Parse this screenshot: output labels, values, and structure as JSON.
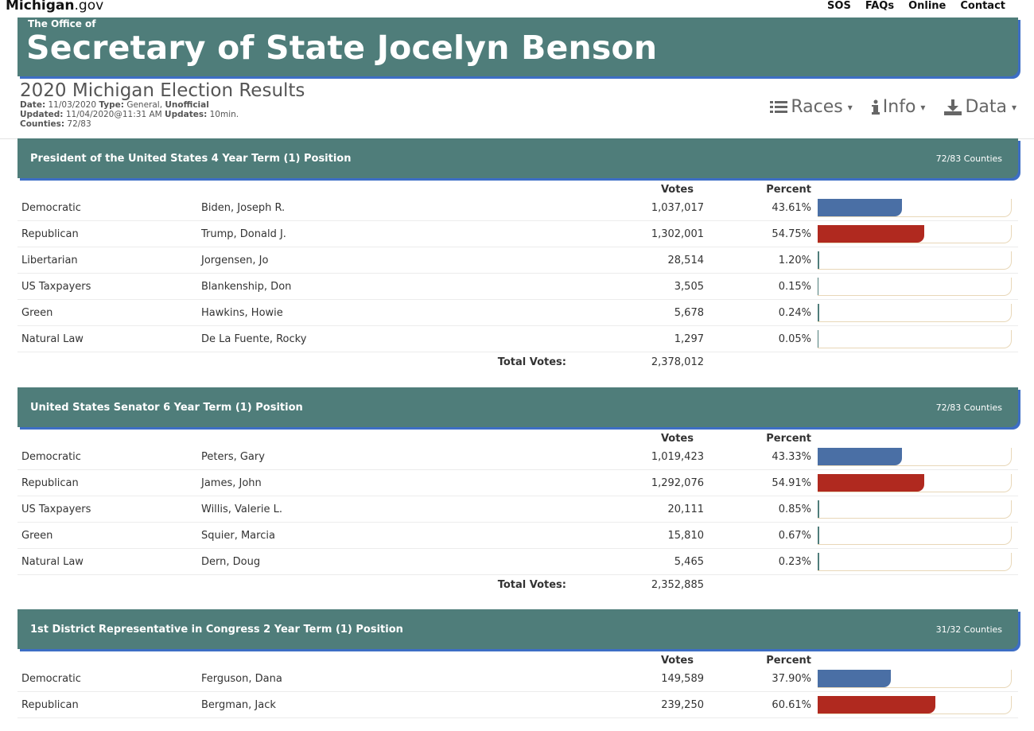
{
  "site": {
    "logo_main": "Michigan",
    "logo_suffix": ".gov",
    "nav": [
      "SOS",
      "FAQs",
      "Online",
      "Contact"
    ]
  },
  "banner": {
    "office": "The Office of",
    "name": "Secretary of State Jocelyn Benson"
  },
  "election": {
    "title": "2020 Michigan Election Results",
    "date_label": "Date:",
    "date": "11/03/2020",
    "type_label": "Type:",
    "type": "General,",
    "status": "Unofficial",
    "updated_label": "Updated:",
    "updated": "11/04/2020@11:31 AM",
    "updates_label": "Updates:",
    "updates": "10min.",
    "counties_label": "Counties:",
    "counties": "72/83"
  },
  "menus": {
    "races": "Races",
    "info": "Info",
    "data": "Data"
  },
  "labels": {
    "votes": "Votes",
    "percent": "Percent",
    "total_votes": "Total Votes:"
  },
  "colors": {
    "header_teal": "#4f7d7a",
    "shadow_blue": "#3d6ec5",
    "democratic": "#4a6fa5",
    "republican": "#b0291f"
  },
  "races": [
    {
      "title": "President of the United States 4 Year Term (1) Position",
      "counties": "72/83 Counties",
      "total": "2,378,012",
      "candidates": [
        {
          "party": "Democratic",
          "name": "Biden, Joseph R.",
          "votes": "1,037,017",
          "percent": "43.61%",
          "share": 43.61,
          "color": "#4a6fa5"
        },
        {
          "party": "Republican",
          "name": "Trump, Donald J.",
          "votes": "1,302,001",
          "percent": "54.75%",
          "share": 54.75,
          "color": "#b0291f"
        },
        {
          "party": "Libertarian",
          "name": "Jorgensen, Jo",
          "votes": "28,514",
          "percent": "1.20%",
          "share": 1.2,
          "color": "#4f7d7a"
        },
        {
          "party": "US Taxpayers",
          "name": "Blankenship, Don",
          "votes": "3,505",
          "percent": "0.15%",
          "share": 0.15,
          "color": "#4f7d7a"
        },
        {
          "party": "Green",
          "name": "Hawkins, Howie",
          "votes": "5,678",
          "percent": "0.24%",
          "share": 0.24,
          "color": "#4f7d7a"
        },
        {
          "party": "Natural Law",
          "name": "De La Fuente, Rocky",
          "votes": "1,297",
          "percent": "0.05%",
          "share": 0.05,
          "color": "#4f7d7a"
        }
      ]
    },
    {
      "title": "United States Senator 6 Year Term (1) Position",
      "counties": "72/83 Counties",
      "total": "2,352,885",
      "candidates": [
        {
          "party": "Democratic",
          "name": "Peters, Gary",
          "votes": "1,019,423",
          "percent": "43.33%",
          "share": 43.33,
          "color": "#4a6fa5"
        },
        {
          "party": "Republican",
          "name": "James, John",
          "votes": "1,292,076",
          "percent": "54.91%",
          "share": 54.91,
          "color": "#b0291f"
        },
        {
          "party": "US Taxpayers",
          "name": "Willis, Valerie L.",
          "votes": "20,111",
          "percent": "0.85%",
          "share": 0.85,
          "color": "#4f7d7a"
        },
        {
          "party": "Green",
          "name": "Squier, Marcia",
          "votes": "15,810",
          "percent": "0.67%",
          "share": 0.67,
          "color": "#4f7d7a"
        },
        {
          "party": "Natural Law",
          "name": "Dern, Doug",
          "votes": "5,465",
          "percent": "0.23%",
          "share": 0.23,
          "color": "#4f7d7a"
        }
      ]
    },
    {
      "title": "1st District Representative in Congress 2 Year Term (1) Position",
      "counties": "31/32 Counties",
      "total": "",
      "candidates": [
        {
          "party": "Democratic",
          "name": "Ferguson, Dana",
          "votes": "149,589",
          "percent": "37.90%",
          "share": 37.9,
          "color": "#4a6fa5"
        },
        {
          "party": "Republican",
          "name": "Bergman, Jack",
          "votes": "239,250",
          "percent": "60.61%",
          "share": 60.61,
          "color": "#b0291f"
        }
      ]
    }
  ]
}
